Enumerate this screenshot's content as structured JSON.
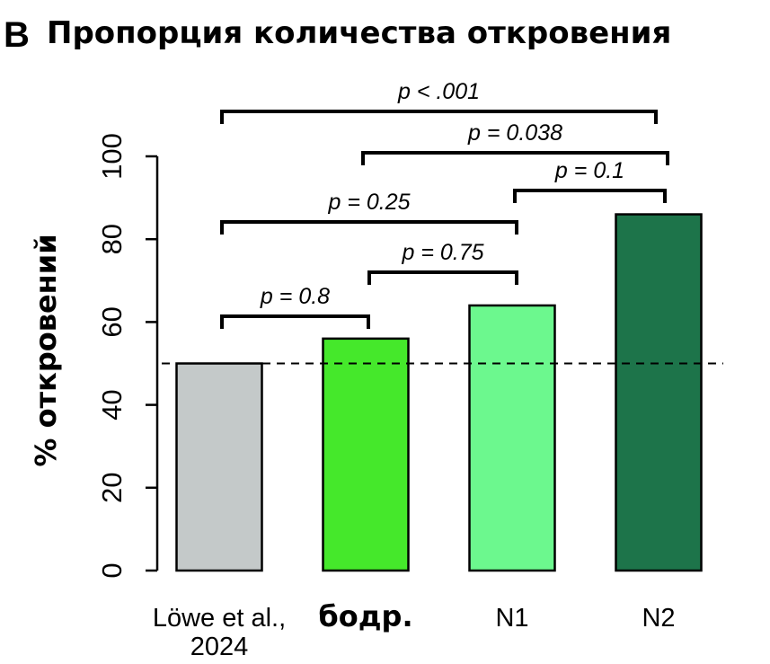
{
  "chart_data": {
    "type": "bar",
    "panel_label": "B",
    "title": "Пропорция количества откровения",
    "ylabel": "% откровений",
    "xlabel": "",
    "ylim": [
      0,
      100
    ],
    "yticks": [
      "0",
      "20",
      "40",
      "60",
      "80",
      "100"
    ],
    "categories": [
      "Löwe et al., 2024",
      "бодр.",
      "N1",
      "N2"
    ],
    "category_lines": [
      [
        "Löwe et al.,",
        "2024"
      ],
      [
        "бодр."
      ],
      [
        "N1"
      ],
      [
        "N2"
      ]
    ],
    "values": [
      50,
      56,
      64,
      86
    ],
    "colors": [
      "#c4c9c9",
      "#45e82b",
      "#6cf88e",
      "#1d744a"
    ],
    "reference_line": {
      "value": 50,
      "style": "dashed"
    },
    "grid": false,
    "legend": "none",
    "comparisons": [
      {
        "from": "Löwe et al., 2024",
        "to": "N2",
        "label": "p < .001"
      },
      {
        "from": "бодр.",
        "to": "N2",
        "label": "p = 0.038"
      },
      {
        "from": "N1",
        "to": "N2",
        "label": "p = 0.1"
      },
      {
        "from": "Löwe et al., 2024",
        "to": "N1",
        "label": "p = 0.25"
      },
      {
        "from": "бодр.",
        "to": "N1",
        "label": "p = 0.75"
      },
      {
        "from": "Löwe et al., 2024",
        "to": "бодр.",
        "label": "p = 0.8"
      }
    ]
  }
}
